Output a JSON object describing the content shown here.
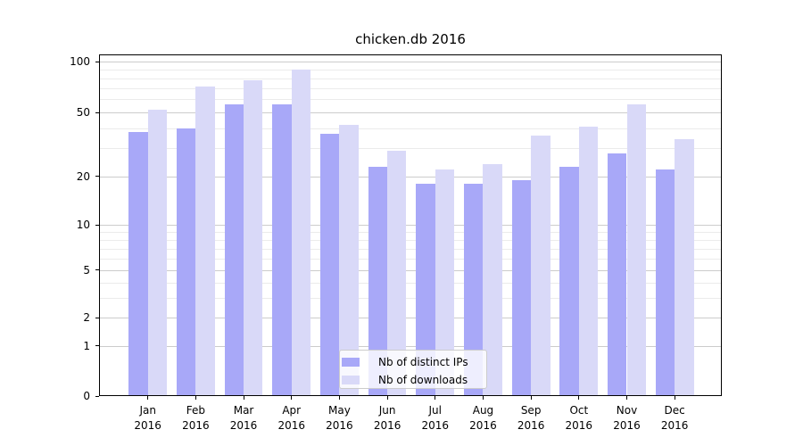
{
  "chart_data": {
    "type": "bar",
    "title": "chicken.db 2016",
    "categories": [
      "Jan",
      "Feb",
      "Mar",
      "Apr",
      "May",
      "Jun",
      "Jul",
      "Aug",
      "Sep",
      "Oct",
      "Nov",
      "Dec"
    ],
    "category_year": "2016",
    "series": [
      {
        "name": "Nb of distinct IPs",
        "color": "#a8a8f8",
        "values": [
          38,
          40,
          56,
          56,
          37,
          23,
          18,
          18,
          19,
          23,
          28,
          22
        ]
      },
      {
        "name": "Nb of downloads",
        "color": "#d9d9f8",
        "values": [
          52,
          71,
          78,
          90,
          42,
          29,
          22,
          24,
          36,
          41,
          56,
          34
        ]
      }
    ],
    "xlabel": "",
    "ylabel": "",
    "yscale": "log1p",
    "ylim": [
      0,
      110
    ],
    "yticks": [
      0,
      1,
      2,
      5,
      10,
      20,
      50,
      100
    ],
    "y_minor_gridlines": [
      3,
      4,
      6,
      7,
      8,
      9,
      30,
      40,
      60,
      70,
      80,
      90
    ],
    "grid": true,
    "legend": {
      "position": "lower-center",
      "entries": [
        "Nb of distinct IPs",
        "Nb of downloads"
      ]
    },
    "colors": {
      "axis": "#000000",
      "grid_major": "#cccccc",
      "grid_minor": "#ebebeb",
      "background": "#ffffff"
    }
  }
}
